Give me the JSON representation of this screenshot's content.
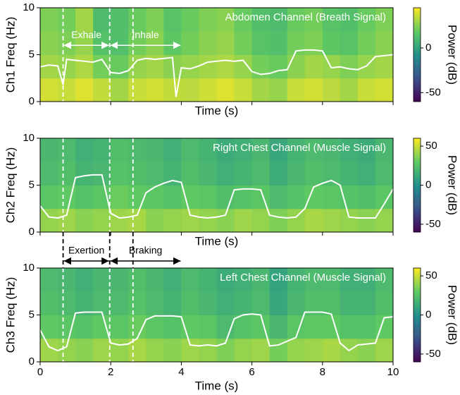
{
  "chart_data": [
    {
      "type": "spectrogram",
      "title": "Abdomen Channel (Breath Signal)",
      "x_label": "Time (s)",
      "y_label": "Ch1 Freq (Hz)",
      "colorbar_label": "Power (dB)",
      "colormap": "viridis",
      "xlim": [
        0,
        10
      ],
      "ylim": [
        0,
        10
      ],
      "xticks": [
        0,
        2,
        4,
        6,
        8,
        10
      ],
      "xticklabels": false,
      "yticks": [
        0,
        5,
        10
      ],
      "clim": [
        -60,
        45
      ],
      "cticks": [
        0,
        -50
      ],
      "power": [
        [
          38,
          36,
          40,
          35,
          30,
          36,
          38,
          35,
          34,
          37,
          40,
          36,
          30,
          28,
          36,
          38,
          34,
          30,
          36,
          38
        ],
        [
          30,
          28,
          32,
          22,
          20,
          28,
          30,
          26,
          28,
          30,
          32,
          28,
          22,
          20,
          26,
          30,
          28,
          24,
          28,
          30
        ],
        [
          26,
          24,
          28,
          15,
          14,
          22,
          26,
          18,
          22,
          26,
          28,
          22,
          16,
          14,
          22,
          24,
          18,
          16,
          22,
          26
        ],
        [
          24,
          22,
          30,
          12,
          14,
          20,
          24,
          16,
          20,
          24,
          26,
          20,
          14,
          12,
          20,
          22,
          16,
          14,
          20,
          24
        ]
      ],
      "x": [
        0,
        0.25,
        0.5,
        0.65,
        0.75,
        1,
        1.25,
        1.5,
        1.75,
        2,
        2.25,
        2.5,
        2.75,
        3,
        3.25,
        3.5,
        3.75,
        3.85,
        4,
        4.25,
        4.5,
        4.75,
        5,
        5.25,
        5.5,
        5.75,
        6,
        6.25,
        6.5,
        6.75,
        7,
        7.25,
        7.5,
        7.75,
        8,
        8.25,
        8.5,
        8.75,
        9,
        9.25,
        9.5,
        9.75,
        10
      ],
      "values": [
        3.7,
        3.9,
        3.8,
        1.8,
        4.5,
        4.4,
        4.3,
        4.2,
        4.5,
        3.1,
        3.0,
        3.3,
        4.4,
        4.6,
        4.5,
        4.6,
        4.7,
        0.5,
        3.6,
        3.5,
        3.8,
        4.2,
        4.3,
        4.4,
        4.3,
        4.4,
        3.2,
        2.9,
        3.0,
        3.3,
        3.4,
        5.4,
        5.5,
        5.5,
        5.4,
        3.6,
        3.7,
        3.5,
        3.4,
        3.8,
        4.8,
        4.9,
        5.0
      ],
      "line_color": "#ffffff",
      "vlines": [
        0.65,
        1.97,
        2.63
      ],
      "annotations": [
        {
          "text": "Exhale",
          "span": [
            0.65,
            1.97
          ]
        },
        {
          "text": "Inhale",
          "span": [
            1.97,
            4.0
          ]
        }
      ]
    },
    {
      "type": "spectrogram",
      "title": "Right Chest Channel (Muscle Signal)",
      "x_label": "Time (s)",
      "y_label": "Ch2 Freq (Hz)",
      "colorbar_label": "Power (dB)",
      "colormap": "viridis",
      "xlim": [
        0,
        10
      ],
      "ylim": [
        0,
        10
      ],
      "xticks": [
        0,
        2,
        4,
        6,
        8,
        10
      ],
      "xticklabels": false,
      "yticks": [
        0,
        5,
        10
      ],
      "clim": [
        -60,
        60
      ],
      "cticks": [
        50,
        0,
        -50
      ],
      "power": [
        [
          40,
          42,
          38,
          40,
          42,
          44,
          38,
          40,
          42,
          40,
          38,
          42,
          40,
          36,
          40,
          44,
          42,
          40,
          38,
          40
        ],
        [
          28,
          30,
          26,
          28,
          32,
          30,
          28,
          26,
          30,
          28,
          24,
          26,
          28,
          22,
          26,
          30,
          28,
          26,
          24,
          28
        ],
        [
          22,
          24,
          18,
          20,
          26,
          24,
          22,
          18,
          24,
          20,
          16,
          18,
          22,
          14,
          20,
          24,
          22,
          18,
          16,
          22
        ],
        [
          20,
          22,
          16,
          18,
          24,
          22,
          20,
          16,
          22,
          18,
          14,
          16,
          20,
          12,
          18,
          22,
          20,
          16,
          14,
          20
        ]
      ],
      "x": [
        0,
        0.25,
        0.5,
        0.75,
        1,
        1.25,
        1.5,
        1.75,
        2,
        2.25,
        2.5,
        2.75,
        3,
        3.25,
        3.5,
        3.75,
        4,
        4.25,
        4.5,
        4.75,
        5,
        5.25,
        5.5,
        5.75,
        6,
        6.25,
        6.5,
        6.75,
        7,
        7.25,
        7.5,
        7.75,
        8,
        8.25,
        8.5,
        8.75,
        9,
        9.25,
        9.5,
        9.75,
        10
      ],
      "values": [
        2.8,
        1.6,
        1.5,
        1.8,
        5.8,
        6.0,
        6.1,
        6.1,
        2.0,
        1.5,
        1.6,
        1.8,
        4.2,
        4.8,
        5.2,
        5.5,
        5.3,
        1.8,
        1.6,
        1.5,
        1.6,
        1.8,
        4.5,
        4.6,
        4.6,
        4.5,
        1.8,
        1.6,
        1.5,
        1.6,
        2.5,
        4.8,
        5.2,
        5.5,
        5.0,
        1.6,
        1.5,
        1.5,
        1.5,
        3.0,
        4.6
      ],
      "line_color": "#ffffff",
      "vlines": [
        0.65,
        1.97,
        2.63
      ]
    },
    {
      "type": "spectrogram",
      "title": "Left Chest Channel (Muscle Signal)",
      "x_label": "Time (s)",
      "y_label": "Ch3 Freq (Hz)",
      "colorbar_label": "Power (dB)",
      "colormap": "viridis",
      "xlim": [
        0,
        10
      ],
      "ylim": [
        0,
        10
      ],
      "xticks": [
        0,
        2,
        4,
        6,
        8,
        10
      ],
      "xticklabels": true,
      "yticks": [
        0,
        5,
        10
      ],
      "clim": [
        -60,
        60
      ],
      "cticks": [
        50,
        0,
        -50
      ],
      "power": [
        [
          42,
          40,
          38,
          42,
          40,
          44,
          40,
          38,
          42,
          40,
          36,
          40,
          42,
          34,
          40,
          42,
          44,
          40,
          38,
          42
        ],
        [
          30,
          28,
          26,
          30,
          28,
          32,
          28,
          26,
          30,
          28,
          22,
          26,
          28,
          20,
          28,
          30,
          30,
          26,
          26,
          30
        ],
        [
          24,
          22,
          18,
          22,
          22,
          26,
          22,
          18,
          24,
          20,
          16,
          18,
          22,
          12,
          20,
          24,
          24,
          18,
          18,
          24
        ],
        [
          22,
          20,
          16,
          20,
          20,
          24,
          20,
          16,
          22,
          18,
          14,
          16,
          20,
          10,
          18,
          22,
          22,
          16,
          16,
          22
        ]
      ],
      "x": [
        0,
        0.25,
        0.5,
        0.75,
        1,
        1.25,
        1.5,
        1.75,
        2,
        2.25,
        2.5,
        2.75,
        3,
        3.25,
        3.5,
        3.75,
        4,
        4.25,
        4.5,
        4.75,
        5,
        5.25,
        5.5,
        5.75,
        6,
        6.25,
        6.5,
        6.75,
        7,
        7.25,
        7.5,
        7.75,
        8,
        8.25,
        8.5,
        8.75,
        9,
        9.25,
        9.5,
        9.75,
        10
      ],
      "values": [
        3.4,
        1.6,
        1.2,
        1.6,
        5.2,
        5.3,
        5.3,
        5.3,
        2.0,
        1.8,
        1.9,
        2.5,
        4.5,
        4.9,
        4.9,
        4.9,
        4.8,
        1.8,
        1.7,
        1.8,
        1.7,
        2.0,
        4.6,
        5.0,
        5.1,
        5.0,
        1.7,
        1.8,
        2.2,
        2.6,
        5.3,
        5.3,
        5.3,
        5.1,
        2.0,
        1.2,
        1.8,
        1.9,
        2.0,
        4.7,
        4.8
      ],
      "line_color": "#ffffff",
      "vlines": [
        0.65,
        1.97,
        2.63
      ],
      "annotations": [
        {
          "text": "Exertion",
          "span": [
            0.65,
            1.97
          ]
        },
        {
          "text": "Braking",
          "span": [
            1.97,
            4.0
          ]
        }
      ]
    }
  ]
}
